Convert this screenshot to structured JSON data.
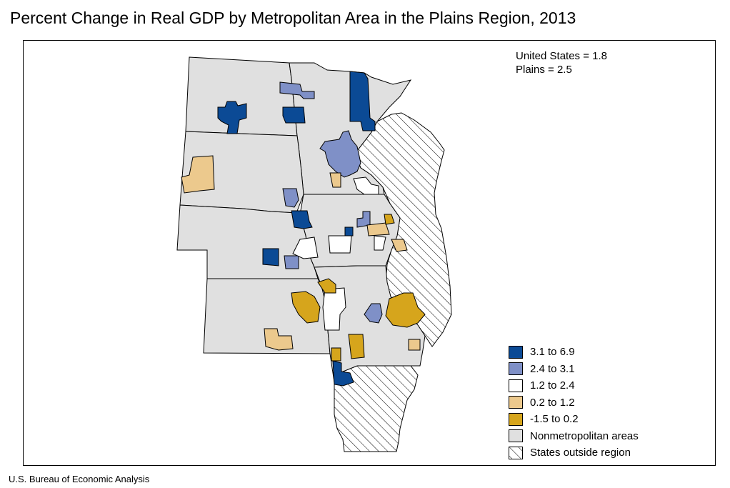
{
  "title": "Percent Change in Real GDP by Metropolitan Area in the Plains Region, 2013",
  "stats": {
    "us": "United States = 1.8",
    "plains": "Plains = 2.5"
  },
  "legend": [
    {
      "label": "3.1 to 6.9",
      "color": "#0b4a95",
      "pattern": false
    },
    {
      "label": "2.4 to 3.1",
      "color": "#7f90c7",
      "pattern": false
    },
    {
      "label": "1.2 to 2.4",
      "color": "#ffffff",
      "pattern": false
    },
    {
      "label": "0.2 to 1.2",
      "color": "#ecc98d",
      "pattern": false
    },
    {
      "label": "-1.5 to 0.2",
      "color": "#d6a51c",
      "pattern": false
    },
    {
      "label": "Nonmetropolitan areas",
      "color": "#e0e0e0",
      "pattern": false
    },
    {
      "label": "States outside region",
      "color": "#ffffff",
      "pattern": true
    }
  ],
  "colors": {
    "class_1": "#0b4a95",
    "class_2": "#7f90c7",
    "class_3": "#ffffff",
    "class_4": "#ecc98d",
    "class_5": "#d6a51c",
    "nonmetro": "#e0e0e0"
  },
  "source": "U.S. Bureau of Economic Analysis"
}
